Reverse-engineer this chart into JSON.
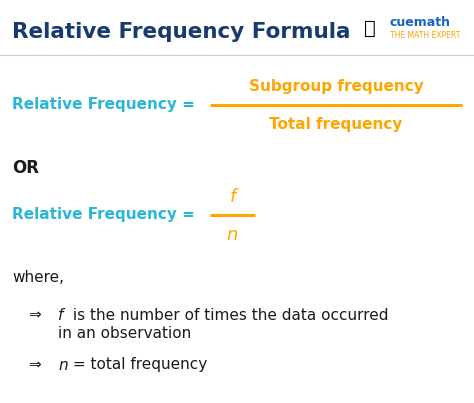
{
  "title": "Relative Frequency Formula",
  "title_color": "#1a3a6e",
  "cyan_color": "#29b6d8",
  "orange_color": "#FFA500",
  "dark_color": "#1a1a1a",
  "bg_color": "#ffffff",
  "formula1_left": "Relative Frequency =",
  "formula1_numerator": "Subgroup frequency",
  "formula1_denominator": "Total frequency",
  "or_text": "OR",
  "formula2_left": "Relative Frequency =",
  "formula2_num": "f",
  "formula2_den": "n",
  "where_text": "where,",
  "arrow": "⇒",
  "bullet1_italic": "f",
  "bullet1_rest": " is the number of times the data occurred",
  "bullet1_line2": "in an observation",
  "bullet2_italic": "n",
  "bullet2_rest": " = total frequency",
  "cuemath_text": "cuemath",
  "cuemath_sub": "THE MATH EXPERT"
}
